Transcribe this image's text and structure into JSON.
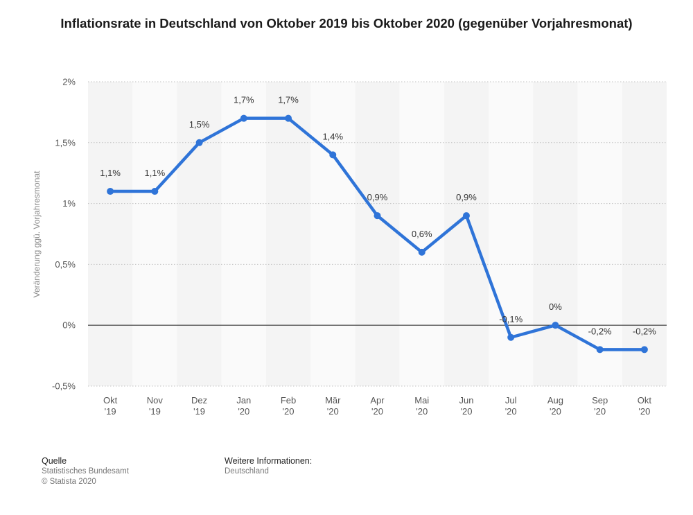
{
  "chart_data": {
    "type": "line",
    "title": "Inflationsrate in Deutschland von Oktober 2019 bis Oktober 2020 (gegenüber Vorjahresmonat)",
    "ylabel": "Veränderung ggü. Vorjahresmonat",
    "xlabel": "",
    "categories": [
      [
        "Okt",
        "'19"
      ],
      [
        "Nov",
        "'19"
      ],
      [
        "Dez",
        "'19"
      ],
      [
        "Jan",
        "'20"
      ],
      [
        "Feb",
        "'20"
      ],
      [
        "Mär",
        "'20"
      ],
      [
        "Apr",
        "'20"
      ],
      [
        "Mai",
        "'20"
      ],
      [
        "Jun",
        "'20"
      ],
      [
        "Jul",
        "'20"
      ],
      [
        "Aug",
        "'20"
      ],
      [
        "Sep",
        "'20"
      ],
      [
        "Okt",
        "'20"
      ]
    ],
    "values": [
      1.1,
      1.1,
      1.5,
      1.7,
      1.7,
      1.4,
      0.9,
      0.6,
      0.9,
      -0.1,
      0,
      -0.2,
      -0.2
    ],
    "data_labels": [
      "1,1%",
      "1,1%",
      "1,5%",
      "1,7%",
      "1,7%",
      "1,4%",
      "0,9%",
      "0,6%",
      "0,9%",
      "-0,1%",
      "0%",
      "-0,2%",
      "-0,2%"
    ],
    "ylim": [
      -0.5,
      2
    ],
    "yticks": [
      2,
      1.5,
      1,
      0.5,
      0,
      -0.5
    ],
    "ytick_labels": [
      "2%",
      "1,5%",
      "1%",
      "0,5%",
      "0%",
      "-0,5%"
    ],
    "grid": true,
    "series_color": "#2f74d8"
  },
  "footer": {
    "source_heading": "Quelle",
    "source_lines": [
      "Statistisches Bundesamt",
      "© Statista 2020"
    ],
    "info_heading": "Weitere Informationen:",
    "info_lines": [
      "Deutschland"
    ]
  }
}
